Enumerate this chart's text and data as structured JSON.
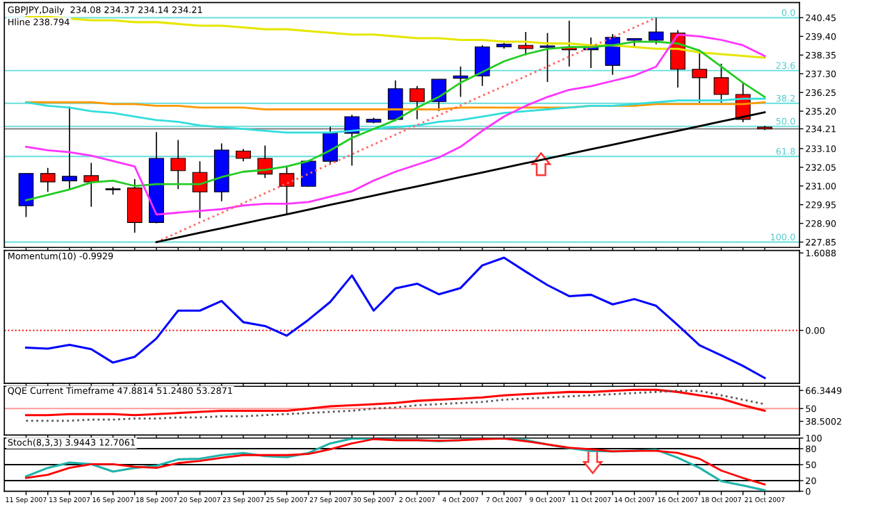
{
  "chart_data": [
    {
      "type": "candlestick",
      "title": "GBPJPY,Daily  234.08 234.37 234.14 234.21",
      "subtitle": "Hline 238.794",
      "ohlc": [
        [
          229.89,
          231.7,
          229.26,
          231.7
        ],
        [
          231.7,
          232.01,
          230.67,
          231.23
        ],
        [
          231.29,
          235.46,
          230.83,
          231.54
        ],
        [
          231.58,
          232.3,
          229.83,
          231.23
        ],
        [
          230.79,
          230.95,
          230.51,
          230.84
        ],
        [
          230.89,
          231.39,
          228.38,
          228.95
        ],
        [
          228.95,
          234.02,
          228.9,
          232.55
        ],
        [
          232.55,
          233.58,
          230.83,
          231.86
        ],
        [
          231.76,
          232.39,
          229.2,
          230.67
        ],
        [
          230.67,
          233.39,
          230.14,
          233.02
        ],
        [
          232.96,
          233.08,
          232.39,
          232.55
        ],
        [
          232.55,
          233.27,
          231.45,
          231.67
        ],
        [
          231.7,
          232.14,
          229.42,
          230.98
        ],
        [
          230.98,
          232.45,
          230.95,
          232.39
        ],
        [
          232.39,
          234.33,
          232.23,
          233.96
        ],
        [
          233.96,
          234.99,
          232.14,
          234.89
        ],
        [
          234.58,
          234.83,
          234.52,
          234.74
        ],
        [
          234.74,
          236.93,
          234.64,
          236.46
        ],
        [
          236.46,
          236.62,
          234.74,
          235.74
        ],
        [
          235.74,
          237.0,
          235.2,
          236.99
        ],
        [
          237.05,
          237.71,
          236.0,
          237.18
        ],
        [
          237.18,
          238.9,
          236.62,
          238.81
        ],
        [
          238.81,
          239.03,
          238.71,
          238.96
        ],
        [
          238.9,
          239.65,
          238.34,
          238.71
        ],
        [
          238.78,
          239.59,
          236.84,
          238.87
        ],
        [
          238.81,
          240.28,
          237.71,
          238.65
        ],
        [
          238.65,
          239.34,
          237.62,
          238.81
        ],
        [
          237.77,
          239.53,
          237.24,
          239.34
        ],
        [
          239.18,
          239.3,
          238.81,
          239.28
        ],
        [
          239.18,
          240.45,
          238.96,
          239.65
        ],
        [
          239.59,
          239.75,
          236.53,
          237.55
        ],
        [
          237.55,
          238.65,
          235.68,
          237.08
        ],
        [
          237.08,
          237.86,
          235.68,
          236.14
        ],
        [
          236.14,
          236.84,
          234.58,
          234.74
        ],
        [
          234.3,
          234.37,
          234.14,
          234.21
        ]
      ],
      "colors": [
        "#0000ff",
        "#ff0000",
        "#0000ff",
        "#ff0000",
        "#0000ff",
        "#ff0000",
        "#0000ff",
        "#ff0000",
        "#ff0000",
        "#0000ff",
        "#ff0000",
        "#ff0000",
        "#ff0000",
        "#0000ff",
        "#0000ff",
        "#0000ff",
        "#0000ff",
        "#0000ff",
        "#ff0000",
        "#0000ff",
        "#0000ff",
        "#0000ff",
        "#0000ff",
        "#ff0000",
        "#0000ff",
        "#ff0000",
        "#0000ff",
        "#0000ff",
        "#0000ff",
        "#0000ff",
        "#ff0000",
        "#ff0000",
        "#ff0000",
        "#ff0000",
        "#ff0000"
      ],
      "series": [
        {
          "type": "line",
          "color": "#e6e600",
          "values": [
            240.5,
            240.5,
            240.4,
            240.3,
            240.3,
            240.2,
            240.2,
            240.1,
            240.0,
            240.0,
            239.9,
            239.8,
            239.8,
            239.7,
            239.6,
            239.5,
            239.5,
            239.4,
            239.3,
            239.3,
            239.2,
            239.2,
            239.1,
            239.1,
            239.0,
            239.0,
            238.9,
            238.9,
            238.8,
            238.7,
            238.7,
            238.5,
            238.4,
            238.3,
            238.2
          ]
        },
        {
          "type": "line",
          "color": "#ff9900",
          "values": [
            235.7,
            235.7,
            235.7,
            235.7,
            235.6,
            235.6,
            235.5,
            235.5,
            235.4,
            235.4,
            235.4,
            235.3,
            235.3,
            235.3,
            235.3,
            235.3,
            235.3,
            235.3,
            235.3,
            235.3,
            235.4,
            235.4,
            235.4,
            235.4,
            235.4,
            235.4,
            235.5,
            235.5,
            235.5,
            235.6,
            235.6,
            235.6,
            235.6,
            235.6,
            235.7
          ]
        },
        {
          "type": "line",
          "color": "#33dddd",
          "values": [
            235.7,
            235.5,
            235.4,
            235.2,
            235.1,
            234.9,
            234.7,
            234.6,
            234.4,
            234.3,
            234.2,
            234.1,
            234.0,
            234.0,
            234.0,
            234.1,
            234.2,
            234.3,
            234.4,
            234.6,
            234.7,
            234.9,
            235.1,
            235.2,
            235.3,
            235.4,
            235.5,
            235.5,
            235.6,
            235.7,
            235.8,
            235.8,
            235.8,
            235.9,
            235.9
          ]
        },
        {
          "type": "line",
          "color": "#22cc22",
          "values": [
            230.2,
            230.5,
            230.8,
            231.2,
            231.3,
            231.0,
            231.1,
            231.1,
            231.1,
            231.5,
            231.8,
            231.9,
            232.1,
            232.4,
            233.0,
            233.7,
            234.2,
            234.7,
            235.4,
            236.0,
            236.8,
            237.4,
            238.0,
            238.4,
            238.7,
            238.8,
            238.8,
            238.9,
            239.1,
            239.1,
            239.0,
            238.6,
            237.7,
            236.8,
            236.0
          ]
        },
        {
          "type": "line",
          "color": "#ff33ff",
          "values": [
            233.2,
            233.0,
            232.9,
            232.7,
            232.4,
            232.1,
            229.4,
            229.5,
            229.6,
            229.7,
            229.9,
            230.0,
            230.0,
            230.1,
            230.4,
            230.7,
            231.3,
            231.8,
            232.2,
            232.6,
            233.2,
            234.1,
            234.9,
            235.5,
            236.0,
            236.4,
            236.6,
            236.9,
            237.2,
            237.7,
            239.5,
            239.4,
            239.2,
            238.9,
            238.3
          ]
        },
        {
          "type": "line",
          "color": "#ff6666",
          "line_style": "dotted",
          "values": [
            null,
            null,
            null,
            null,
            null,
            null,
            227.85,
            228.4,
            228.95,
            229.49,
            230.04,
            230.59,
            231.14,
            231.68,
            232.23,
            232.78,
            233.33,
            233.88,
            234.42,
            234.97,
            235.52,
            236.07,
            236.61,
            237.16,
            237.71,
            238.26,
            238.81,
            239.35,
            239.9,
            240.45,
            null,
            null,
            null,
            null,
            null
          ]
        },
        {
          "type": "line",
          "color": "#000000",
          "values": [
            null,
            null,
            null,
            null,
            null,
            null,
            227.85,
            228.11,
            228.37,
            228.63,
            228.89,
            229.15,
            229.41,
            229.67,
            229.94,
            230.2,
            230.46,
            230.72,
            230.98,
            231.24,
            231.5,
            231.76,
            232.02,
            232.28,
            232.54,
            232.8,
            233.06,
            233.32,
            233.58,
            233.84,
            234.1,
            234.36,
            234.62,
            234.88,
            235.14
          ]
        }
      ],
      "annotations": [
        {
          "text": "0.0",
          "y": 240.45
        },
        {
          "text": "23.6",
          "y": 237.48
        },
        {
          "text": "38.2",
          "y": 235.64
        },
        {
          "text": "50.0",
          "y": 234.35
        },
        {
          "text": "61.8",
          "y": 232.66
        },
        {
          "text": "100.0",
          "y": 227.85
        }
      ],
      "ref_lines": [
        {
          "axis": "y",
          "value": 240.45,
          "color": "#66dddd"
        },
        {
          "axis": "y",
          "value": 237.48,
          "color": "#66dddd"
        },
        {
          "axis": "y",
          "value": 235.64,
          "color": "#66dddd"
        },
        {
          "axis": "y",
          "value": 234.35,
          "color": "#66dddd"
        },
        {
          "axis": "y",
          "value": 232.66,
          "color": "#66dddd"
        },
        {
          "axis": "y",
          "value": 227.85,
          "color": "#66dddd"
        },
        {
          "axis": "y",
          "value": 234.21,
          "color": "#808080"
        }
      ],
      "ylim": [
        227.55,
        241.3
      ],
      "yticks": [
        240.45,
        {
          "value": 239.4,
          "label": "239.40"
        },
        238.35,
        {
          "value": 237.3,
          "label": "237.30"
        },
        236.25,
        {
          "value": 235.2,
          "label": "235.20"
        },
        234.21,
        {
          "value": 233.1,
          "label": "233.10"
        },
        232.05,
        {
          "value": 231.0,
          "label": "231.00"
        },
        229.95,
        {
          "value": 228.9,
          "label": "228.90"
        },
        227.85
      ],
      "tick_labels": "y"
    },
    {
      "type": "line",
      "title": "Momentum(10) -0.9929",
      "series": [
        {
          "color": "#0000ff",
          "values": [
            -0.36,
            -0.38,
            -0.3,
            -0.39,
            -0.67,
            -0.55,
            -0.17,
            0.41,
            0.41,
            0.61,
            0.17,
            0.09,
            -0.11,
            0.22,
            0.59,
            1.14,
            0.41,
            0.87,
            0.97,
            0.75,
            0.88,
            1.35,
            1.51,
            1.22,
            0.94,
            0.71,
            0.74,
            0.54,
            0.65,
            0.51,
            0.11,
            -0.31,
            -0.52,
            -0.74,
            -0.99
          ]
        }
      ],
      "ref_lines": [
        {
          "axis": "y",
          "value": 0,
          "color": "#ff0000",
          "line_style": "dotted"
        }
      ],
      "ylim": [
        -1.1,
        1.66
      ],
      "yticks": [
        1.6088,
        {
          "value": 0,
          "label": "0.00"
        }
      ],
      "tick_labels": "y"
    },
    {
      "type": "line",
      "title": "QQE Current Timeframe 47.8814 51.2480 53.2871",
      "series": [
        {
          "color": "#ff0000",
          "values": [
            44,
            44,
            45,
            45,
            45,
            44,
            45,
            46,
            47,
            48,
            48,
            48,
            48,
            50,
            52,
            53,
            54,
            55,
            57,
            58,
            59,
            60,
            62,
            63,
            64,
            65,
            65,
            66,
            67,
            67,
            65,
            62,
            59,
            53,
            48
          ]
        },
        {
          "color": "#555555",
          "line_style": "dotted",
          "values": [
            39,
            39,
            39,
            40,
            40,
            41,
            41,
            42,
            42,
            43,
            43,
            44,
            45,
            46,
            47,
            48,
            50,
            51,
            53,
            54,
            55,
            56,
            58,
            59,
            60,
            61,
            62,
            63,
            64,
            65,
            66,
            66,
            62,
            58,
            54
          ]
        }
      ],
      "ref_lines": [
        {
          "axis": "y",
          "value": 50,
          "color": "#ff9999"
        }
      ],
      "ylim": [
        26.1,
        70.1
      ],
      "yticks": [
        66.3449,
        50,
        38.5002
      ],
      "tick_labels": "y"
    },
    {
      "type": "line",
      "title": "Stoch(8,3,3) 3.9443 12.7061",
      "categories": [
        "11 Sep 2007",
        null,
        "13 Sep 2007",
        null,
        "16 Sep 2007",
        null,
        "18 Sep 2007",
        null,
        "20 Sep 2007",
        null,
        "23 Sep 2007",
        null,
        "25 Sep 2007",
        null,
        "27 Sep 2007",
        null,
        "30 Sep 2007",
        null,
        "2 Oct 2007",
        null,
        "4 Oct 2007",
        null,
        "7 Oct 2007",
        null,
        "9 Oct 2007",
        null,
        "11 Oct 2007",
        null,
        "14 Oct 2007",
        null,
        "16 Oct 2007",
        null,
        "18 Oct 2007",
        null,
        "21 Oct 2007"
      ],
      "series": [
        {
          "color": "#20b2aa",
          "values": [
            28,
            44,
            54,
            51,
            37,
            44,
            48,
            60,
            61,
            68,
            72,
            66,
            64,
            72,
            90,
            99,
            99,
            96,
            96,
            94,
            96,
            100,
            99,
            96,
            88,
            81,
            76,
            75,
            76,
            78,
            63,
            44,
            19,
            11,
            2
          ]
        },
        {
          "color": "#ff0000",
          "values": [
            25,
            31,
            44,
            51,
            51,
            46,
            44,
            53,
            57,
            63,
            68,
            68,
            68,
            70,
            79,
            90,
            98,
            96,
            96,
            95,
            96,
            98,
            99,
            94,
            88,
            82,
            79,
            75,
            76,
            76,
            72,
            61,
            39,
            25,
            13
          ]
        }
      ],
      "ref_lines": [
        {
          "axis": "y",
          "value": 80,
          "color": "#000000"
        },
        {
          "axis": "y",
          "value": 50,
          "color": "#000000"
        },
        {
          "axis": "y",
          "value": 20,
          "color": "#000000"
        }
      ],
      "ylim": [
        0,
        100
      ],
      "yticks": [
        100,
        80,
        50,
        20,
        0
      ]
    }
  ]
}
